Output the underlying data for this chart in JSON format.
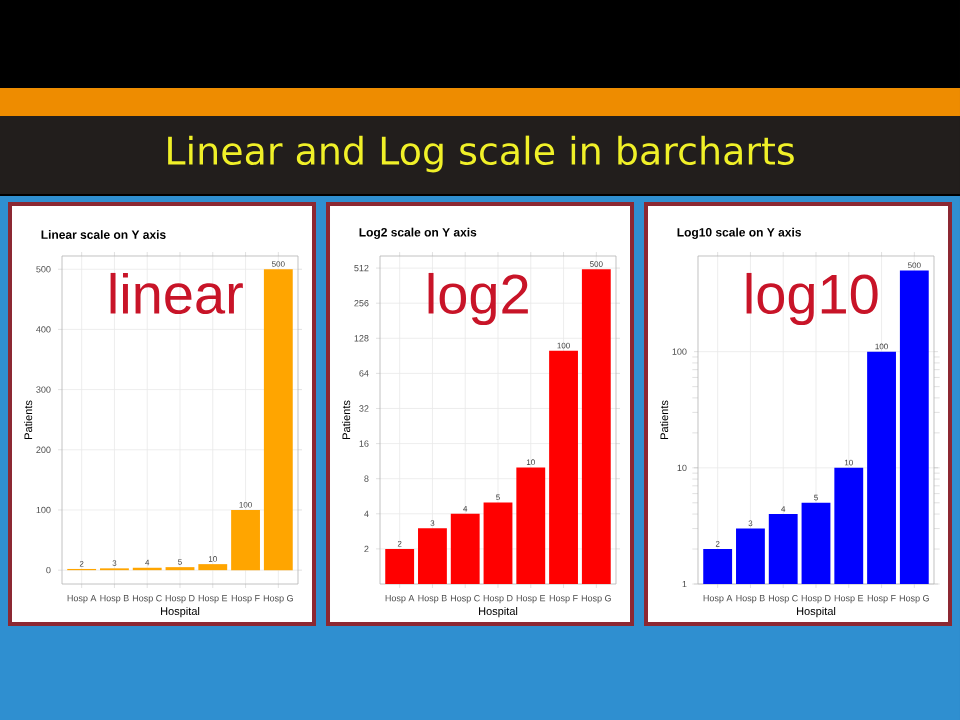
{
  "chart_data": [
    {
      "type": "other",
      "title": "Linear and Log scale in barcharts"
    },
    {
      "type": "bar",
      "title": "Linear scale on Y axis",
      "xlabel": "Hospital",
      "ylabel": "Patients",
      "categories": [
        "Hosp A",
        "Hosp B",
        "Hosp C",
        "Hosp D",
        "Hosp E",
        "Hosp F",
        "Hosp G"
      ],
      "values": [
        2,
        3,
        4,
        5,
        10,
        100,
        500
      ],
      "color": "#ffa500",
      "ylim": [
        -23,
        522
      ],
      "yticks": [
        0,
        100,
        200,
        300,
        400,
        500
      ],
      "grid": true,
      "data_labels": true,
      "annotations": [
        "linear"
      ]
    },
    {
      "type": "bar",
      "title": "Log2 scale on Y axis",
      "xlabel": "Hospital",
      "ylabel": "Patients",
      "categories": [
        "Hosp A",
        "Hosp B",
        "Hosp C",
        "Hosp D",
        "Hosp E",
        "Hosp F",
        "Hosp G"
      ],
      "values": [
        2,
        3,
        4,
        5,
        10,
        100,
        500
      ],
      "color": "#ff0000",
      "log": "y",
      "ylim": [
        1,
        650
      ],
      "yticks": [
        2,
        4,
        8,
        16,
        32,
        64,
        128,
        256,
        512
      ],
      "grid": true,
      "data_labels": true,
      "annotations": [
        "log2"
      ]
    },
    {
      "type": "bar",
      "title": "Log10 scale on Y axis",
      "xlabel": "Hospital",
      "ylabel": "Patients",
      "categories": [
        "Hosp A",
        "Hosp B",
        "Hosp C",
        "Hosp D",
        "Hosp E",
        "Hosp F",
        "Hosp G"
      ],
      "values": [
        2,
        3,
        4,
        5,
        10,
        100,
        500
      ],
      "color": "#0000ff",
      "log": "y",
      "ylim": [
        1,
        666
      ],
      "yticks": [
        1,
        10,
        100
      ],
      "grid": true,
      "data_labels": true,
      "annotations": [
        "log10"
      ]
    }
  ]
}
